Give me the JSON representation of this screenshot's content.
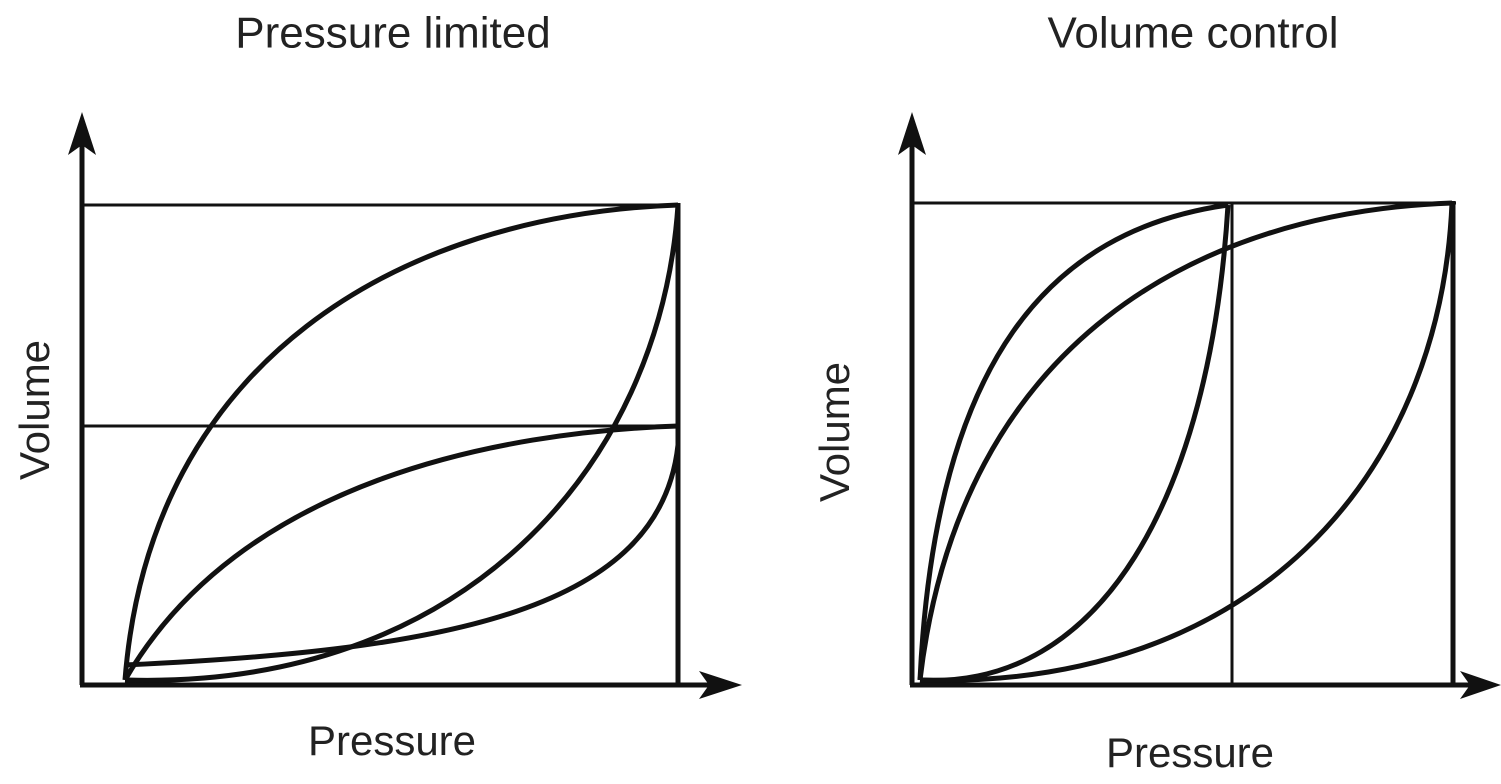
{
  "panels": [
    {
      "title": "Pressure limited",
      "x_label": "Pressure",
      "y_label": "Volume"
    },
    {
      "title": "Volume control",
      "x_label": "Pressure",
      "y_label": "Volume"
    }
  ]
}
